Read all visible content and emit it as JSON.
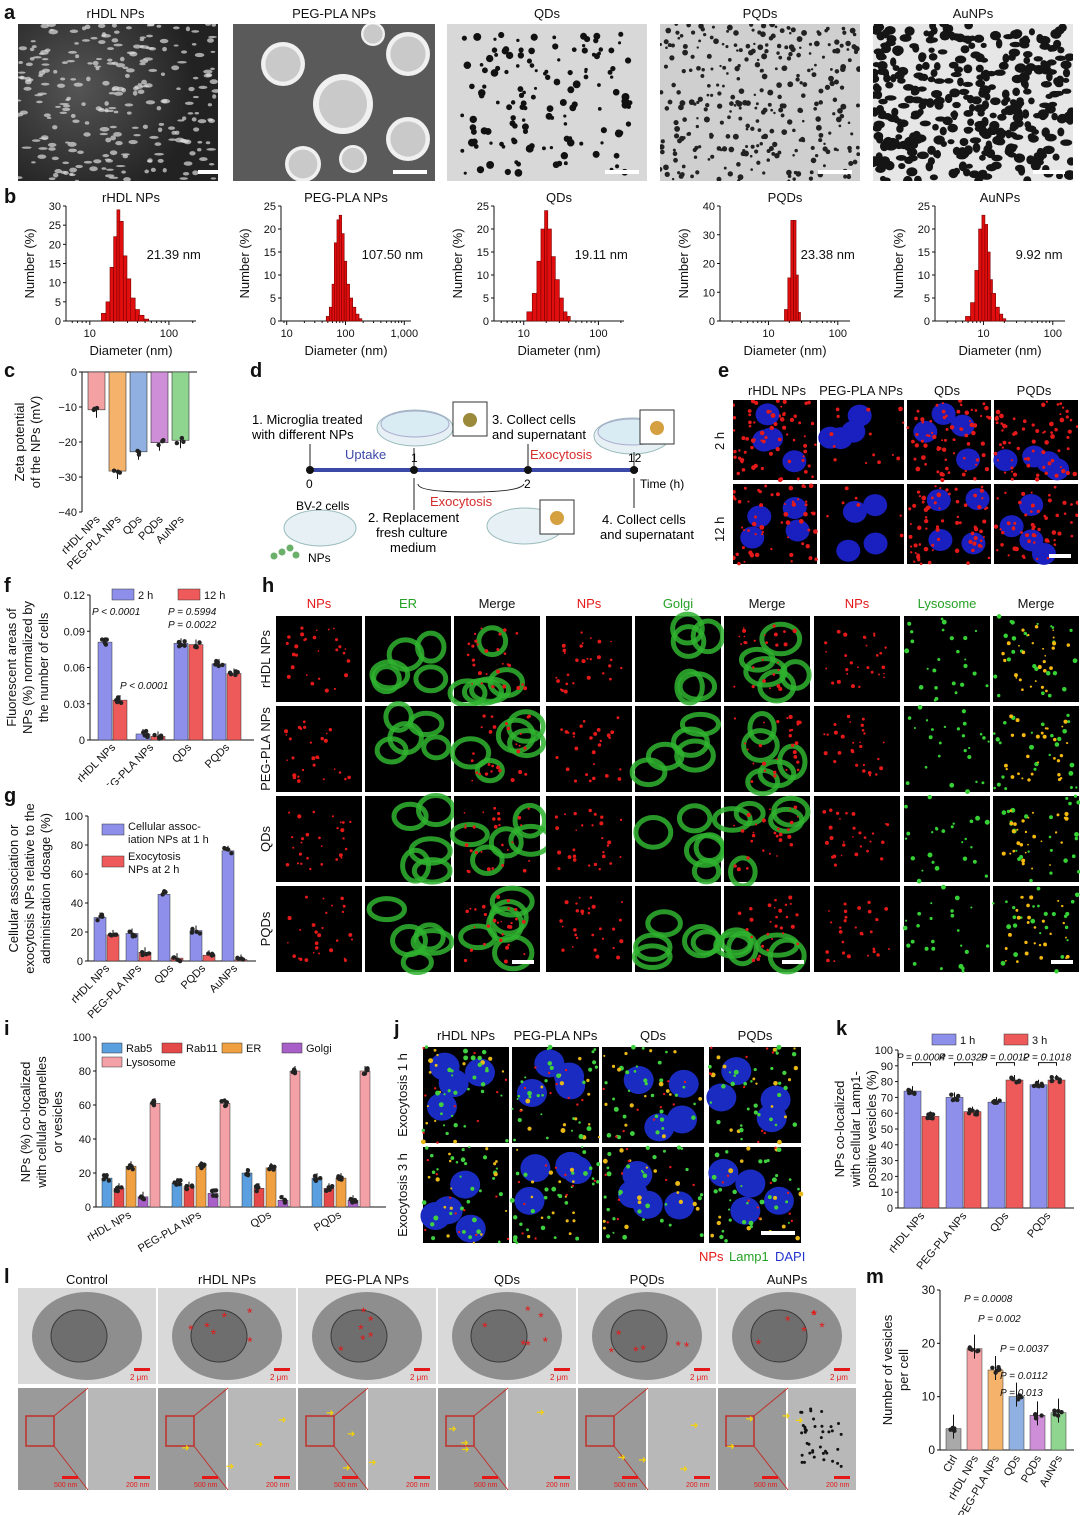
{
  "panel_labels": {
    "a": "a",
    "b": "b",
    "c": "c",
    "d": "d",
    "e": "e",
    "f": "f",
    "g": "g",
    "h": "h",
    "i": "i",
    "j": "j",
    "k": "k",
    "l": "l",
    "m": "m"
  },
  "nps": [
    "rHDL NPs",
    "PEG-PLA NPs",
    "QDs",
    "PQDs",
    "AuNPs"
  ],
  "panel_a": {
    "titles": [
      "rHDL NPs",
      "PEG-PLA NPs",
      "QDs",
      "PQDs",
      "AuNPs"
    ]
  },
  "panel_b": [
    {
      "title": "rHDL NPs",
      "annot": "21.39 nm",
      "ylabel": "Number (%)",
      "xlabel": "Diameter (nm)",
      "yticks": [
        "0",
        "5",
        "10",
        "15",
        "20",
        "25",
        "30"
      ],
      "xticks": [
        "10",
        "100"
      ],
      "xlog": [
        1,
        2.2
      ],
      "xlim": [
        5,
        220
      ],
      "ylim": [
        0,
        30
      ],
      "bins_x": [
        15,
        17,
        19,
        21,
        23,
        25,
        28,
        31,
        35,
        40,
        45,
        52
      ],
      "values": [
        2,
        5,
        14,
        22,
        29,
        26,
        17,
        11,
        6,
        3,
        1.5,
        0.5
      ]
    },
    {
      "title": "PEG-PLA NPs",
      "annot": "107.50 nm",
      "ylabel": "Number (%)",
      "xlabel": "Diameter (nm)",
      "yticks": [
        "0",
        "5",
        "10",
        "15",
        "20",
        "25"
      ],
      "xticks": [
        "10",
        "100",
        "1,000"
      ],
      "xlim": [
        8,
        1300
      ],
      "ylim": [
        0,
        25
      ],
      "bins_x": [
        50,
        56,
        62,
        68,
        75,
        82,
        90,
        100,
        110,
        125,
        140,
        160,
        180
      ],
      "values": [
        1,
        3,
        8,
        17,
        22,
        23,
        19,
        13,
        8,
        5,
        3,
        1.5,
        0.5
      ]
    },
    {
      "title": "QDs",
      "annot": "19.11 nm",
      "ylabel": "Number (%)",
      "xlabel": "Diameter (nm)",
      "yticks": [
        "0",
        "5",
        "10",
        "15",
        "20",
        "25"
      ],
      "xticks": [
        "10",
        "100"
      ],
      "xlim": [
        4,
        220
      ],
      "ylim": [
        0,
        25
      ],
      "bins_x": [
        12,
        14,
        16,
        18,
        20,
        22,
        25,
        28,
        32,
        36,
        40
      ],
      "values": [
        2,
        6,
        13,
        20,
        24,
        20,
        14,
        9,
        5,
        2,
        1
      ]
    },
    {
      "title": "PQDs",
      "annot": "23.38 nm",
      "ylabel": "Number (%)",
      "xlabel": "Diameter (nm)",
      "yticks": [
        "0",
        "10",
        "20",
        "30",
        "40"
      ],
      "xticks": [
        "10",
        "100"
      ],
      "xlim": [
        2,
        150
      ],
      "ylim": [
        0,
        40
      ],
      "bins_x": [
        18,
        20,
        22,
        24,
        26,
        28
      ],
      "values": [
        4,
        15,
        35,
        35,
        16,
        3
      ]
    },
    {
      "title": "AuNPs",
      "annot": "9.92 nm",
      "ylabel": "Number (%)",
      "xlabel": "Diameter (nm)",
      "yticks": [
        "0",
        "5",
        "10",
        "15",
        "20",
        "25"
      ],
      "xticks": [
        "10",
        "100"
      ],
      "xlim": [
        2,
        150
      ],
      "ylim": [
        0,
        25
      ],
      "bins_x": [
        6,
        7,
        8,
        9,
        10,
        11,
        12,
        13,
        14,
        16,
        18,
        20
      ],
      "values": [
        1,
        4,
        11,
        20,
        23,
        21,
        15,
        9,
        6,
        3,
        1.5,
        0.5
      ]
    }
  ],
  "panel_c": {
    "ylabel": "Zeta potential of the NPs (mV)",
    "yticks": [
      "0",
      "−10",
      "−20",
      "−30",
      "−40"
    ],
    "ylim": [
      -40,
      0
    ],
    "categories": [
      "rHDL NPs",
      "PEG-PLA NPs",
      "QDs",
      "PQDs",
      "AuNPs"
    ],
    "values": [
      -10.8,
      -28.3,
      -22.8,
      -20.2,
      -19.5
    ],
    "colors": [
      "#f4a1a3",
      "#f5b26b",
      "#8fb0e0",
      "#cf8fd8",
      "#8fd48f"
    ]
  },
  "panel_d": {
    "step1": "1. Microglia treated",
    "step1b": "with different NPs",
    "uptake": "Uptake",
    "step3": "3. Collect cells",
    "step3b": "and supernatant",
    "exo1": "Exocytosis",
    "exo2": "Exocytosis",
    "t0": "0",
    "t1": "1",
    "t2": "2",
    "t12": "12",
    "time": "Time (h)",
    "bv2": "BV-2 cells",
    "nps": "NPs",
    "step2": "2. Replacement",
    "step2b": "fresh culture",
    "step2c": "medium",
    "step4": "4. Collect cells",
    "step4b": "and supernatant"
  },
  "panel_e": {
    "cols": [
      "rHDL NPs",
      "PEG-PLA NPs",
      "QDs",
      "PQDs"
    ],
    "rows": [
      "2 h",
      "12 h"
    ]
  },
  "panel_f": {
    "ylabel": "Fluorescent areas of NPs (%) normalized by the number of cells",
    "yticks": [
      "0",
      "0.03",
      "0.06",
      "0.09",
      "0.12"
    ],
    "ylim": [
      0,
      0.12
    ],
    "categories": [
      "rHDL NPs",
      "PEG-PLA NPs",
      "QDs",
      "PQDs"
    ],
    "series": [
      {
        "name": "2 h",
        "values": [
          0.081,
          0.005,
          0.08,
          0.063
        ],
        "color": "#8d8fea"
      },
      {
        "name": "12 h",
        "values": [
          0.033,
          0.003,
          0.079,
          0.055
        ],
        "color": "#ee5a5a"
      }
    ],
    "pvalues": [
      "P < 0.0001",
      "P = 0.5994",
      "P = 0.0022",
      "P < 0.0001"
    ]
  },
  "panel_g": {
    "ylabel": "Cellular association or exocytosis NPs relative to the administration dosage (%)",
    "yticks": [
      "0",
      "20",
      "40",
      "60",
      "80",
      "100"
    ],
    "ylim": [
      0,
      100
    ],
    "categories": [
      "rHDL NPs",
      "PEG-PLA NPs",
      "QDs",
      "PQDs",
      "AuNPs"
    ],
    "series": [
      {
        "name": "Cellular assoc- iation NPs at 1 h",
        "values": [
          30,
          19,
          46,
          21,
          76
        ],
        "color": "#8d8fea"
      },
      {
        "name": "Exocytosis NPs at 2 h",
        "values": [
          18,
          6,
          2,
          4,
          1
        ],
        "color": "#ee5a5a"
      }
    ],
    "legend1a": "Cellular assoc-",
    "legend1b": "iation NPs at 1 h",
    "legend2a": "Exocytosis",
    "legend2b": "NPs at 2 h"
  },
  "panel_h": {
    "headers": [
      "NPs",
      "ER",
      "Merge",
      "NPs",
      "Golgi",
      "Merge",
      "NPs",
      "Lysosome",
      "Merge"
    ],
    "rows": [
      "rHDL NPs",
      "PEG-PLA NPs",
      "QDs",
      "PQDs"
    ]
  },
  "panel_i": {
    "ylabel": "NPs (%) co-localized with cellular organelles or vesicles",
    "yticks": [
      "0",
      "20",
      "40",
      "60",
      "80",
      "100"
    ],
    "ylim": [
      0,
      100
    ],
    "categories": [
      "rHDL NPs",
      "PEG-PLA NPs",
      "QDs",
      "PQDs"
    ],
    "series": [
      {
        "name": "Rab5",
        "color": "#5aa0e0",
        "values": [
          17,
          14,
          20,
          17
        ]
      },
      {
        "name": "Rab11",
        "color": "#e54848",
        "values": [
          11,
          12,
          11,
          11
        ]
      },
      {
        "name": "ER",
        "color": "#f0a040",
        "values": [
          24,
          24,
          23,
          17
        ]
      },
      {
        "name": "Golgi",
        "color": "#a860c8",
        "values": [
          6,
          8,
          4,
          4
        ]
      },
      {
        "name": "Lysosome",
        "color": "#f3a0a6",
        "values": [
          61,
          61,
          80,
          80
        ]
      }
    ]
  },
  "panel_j": {
    "cols": [
      "rHDL NPs",
      "PEG-PLA NPs",
      "QDs",
      "PQDs"
    ],
    "rows": [
      "Exocytosis 1 h",
      "Exocytosis 3 h"
    ],
    "legend_nps": "NPs",
    "legend_lamp": "Lamp1",
    "legend_dapi": "DAPI"
  },
  "panel_k": {
    "ylabel": "NPs co-localized with cellular Lamp1- positive vesicles (%)",
    "yticks": [
      "0",
      "10",
      "20",
      "30",
      "40",
      "50",
      "60",
      "70",
      "80",
      "90",
      "100"
    ],
    "ylim": [
      0,
      100
    ],
    "categories": [
      "rHDL NPs",
      "PEG-PLA NPs",
      "QDs",
      "PQDs"
    ],
    "series": [
      {
        "name": "1 h",
        "values": [
          74,
          70,
          67,
          78
        ],
        "color": "#8d8fea"
      },
      {
        "name": "3 h",
        "values": [
          58,
          61,
          81,
          81
        ],
        "color": "#ee5a5a"
      }
    ],
    "pvalues": [
      "P = 0.0004",
      "P = 0.0329",
      "P = 0.0012",
      "P = 0.1018"
    ]
  },
  "panel_l": {
    "cols": [
      "Control",
      "rHDL NPs",
      "PEG-PLA NPs",
      "QDs",
      "PQDs",
      "AuNPs"
    ],
    "scale_top": "2 μm",
    "scale_mid": "500 nm",
    "scale_zoom": "200 nm"
  },
  "panel_m": {
    "ylabel": "Number of vesicles per cell",
    "yticks": [
      "0",
      "10",
      "20",
      "30"
    ],
    "ylim": [
      0,
      30
    ],
    "categories": [
      "Ctrl",
      "rHDL NPs",
      "PEG-PLA NPs",
      "QDs",
      "PQDs",
      "AuNPs"
    ],
    "values": [
      4,
      19,
      15,
      10,
      6.5,
      7
    ],
    "colors": [
      "#a9a9a9",
      "#f4a1a3",
      "#f5b26b",
      "#8fb0e0",
      "#cf8fd8",
      "#8fd48f"
    ],
    "pvalues": [
      "P = 0.0008",
      "P = 0.002",
      "P = 0.0037",
      "P = 0.0112",
      "P = 0.013"
    ]
  }
}
